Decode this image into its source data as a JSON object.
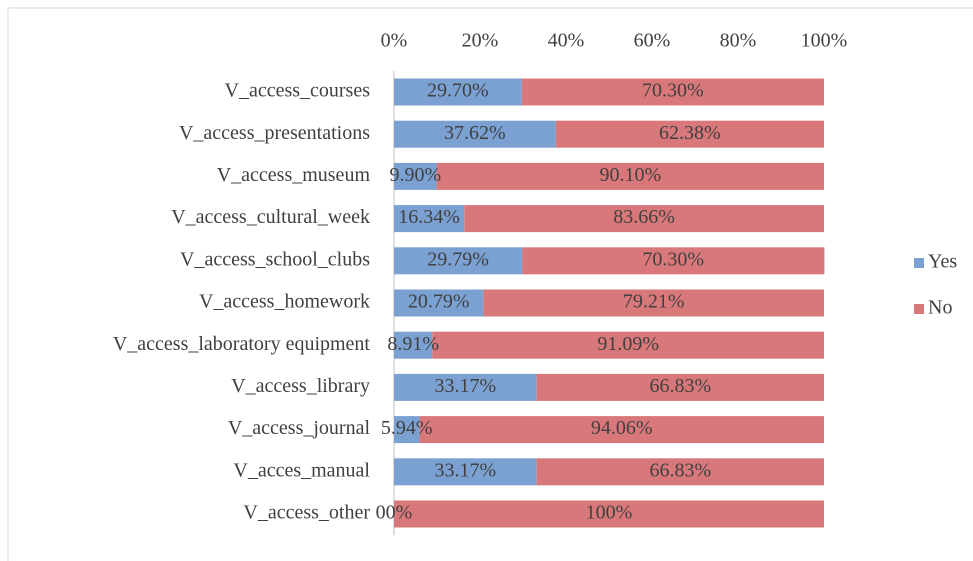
{
  "chart_data": {
    "type": "stacked_bar_horizontal",
    "categories": [
      "V_access_courses",
      "V_access_presentations",
      "V_access_museum",
      "V_access_cultural_week",
      "V_access_school_clubs",
      "V_access_homework",
      "V_access_laboratory equipment",
      "V_access_library",
      "V_access_journal",
      "V_acces_manual",
      "V_access_other"
    ],
    "series": [
      {
        "name": "Yes",
        "color": "#7ba1d2",
        "values": [
          29.7,
          37.62,
          9.9,
          16.34,
          29.79,
          20.79,
          8.91,
          33.17,
          5.94,
          33.17,
          0
        ],
        "value_labels": [
          "29.70%",
          "37.62%",
          "9.90%",
          "16.34%",
          "29.79%",
          "20.79%",
          "8.91%",
          "33.17%",
          "5.94%",
          "33.17%",
          "00%"
        ]
      },
      {
        "name": "No",
        "color": "#d9787a",
        "values": [
          70.3,
          62.38,
          90.1,
          83.66,
          70.3,
          79.21,
          91.09,
          66.83,
          94.06,
          66.83,
          100
        ],
        "value_labels": [
          "70.30%",
          "62.38%",
          "90.10%",
          "83.66%",
          "70.30%",
          "79.21%",
          "91.09%",
          "66.83%",
          "94.06%",
          "66.83%",
          "100%"
        ]
      }
    ],
    "xlim": [
      0,
      100
    ],
    "xticks": [
      {
        "value": 0,
        "label": "0%"
      },
      {
        "value": 20,
        "label": "20%"
      },
      {
        "value": 40,
        "label": "40%"
      },
      {
        "value": 60,
        "label": "60%"
      },
      {
        "value": 80,
        "label": "80%"
      },
      {
        "value": 100,
        "label": "100%"
      }
    ],
    "legend": "right"
  }
}
